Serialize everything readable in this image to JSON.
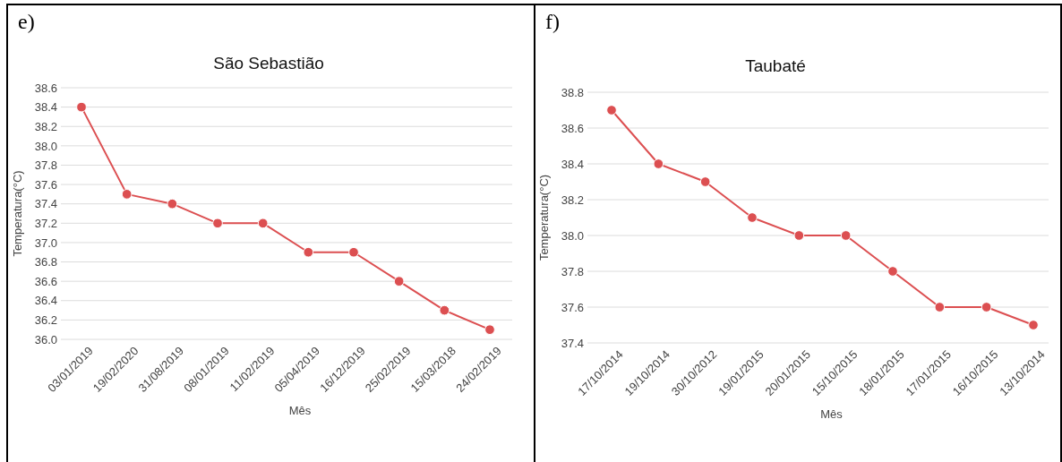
{
  "chart_data": [
    {
      "type": "line",
      "title": "São Sebastião",
      "xlabel": "Mês",
      "ylabel": "Temperatura(°C)",
      "annotations": [
        "e)"
      ],
      "categories": [
        "03/01/2019",
        "19/02/2020",
        "31/08/2019",
        "08/01/2019",
        "11/02/2019",
        "05/04/2019",
        "16/12/2019",
        "25/02/2019",
        "15/03/2018",
        "24/02/2019"
      ],
      "series": [
        {
          "color": "#dc4f51",
          "values": [
            38.4,
            37.5,
            37.4,
            37.2,
            37.2,
            36.9,
            36.9,
            36.6,
            36.3,
            36.1
          ]
        }
      ],
      "ylim": [
        36.0,
        38.6
      ],
      "yticks": [
        {
          "value": 36,
          "label": "36.0"
        },
        36.2,
        36.4,
        36.6,
        36.8,
        {
          "value": 37,
          "label": "37.0"
        },
        37.2,
        37.4,
        37.6,
        37.8,
        {
          "value": 38,
          "label": "38.0"
        },
        38.2,
        38.4,
        38.6
      ],
      "grid": "y",
      "marker": "circle",
      "line_style": "solid"
    },
    {
      "type": "line",
      "title": "Taubaté",
      "xlabel": "Mês",
      "ylabel": "Temperatura(°C)",
      "annotations": [
        "f)"
      ],
      "categories": [
        "17/10/2014",
        "19/10/2014",
        "30/10/2012",
        "19/01/2015",
        "20/01/2015",
        "15/10/2015",
        "18/01/2015",
        "17/01/2015",
        "16/10/2015",
        "13/10/2014"
      ],
      "series": [
        {
          "color": "#dc4f51",
          "values": [
            38.7,
            38.4,
            38.3,
            38.1,
            38.0,
            38.0,
            37.8,
            37.6,
            37.6,
            37.5
          ]
        }
      ],
      "ylim": [
        37.4,
        38.8
      ],
      "yticks": [
        37.4,
        37.6,
        37.8,
        {
          "value": 38,
          "label": "38.0"
        },
        38.2,
        38.4,
        38.6,
        38.8
      ],
      "grid": "y",
      "marker": "circle",
      "line_style": "solid"
    }
  ]
}
